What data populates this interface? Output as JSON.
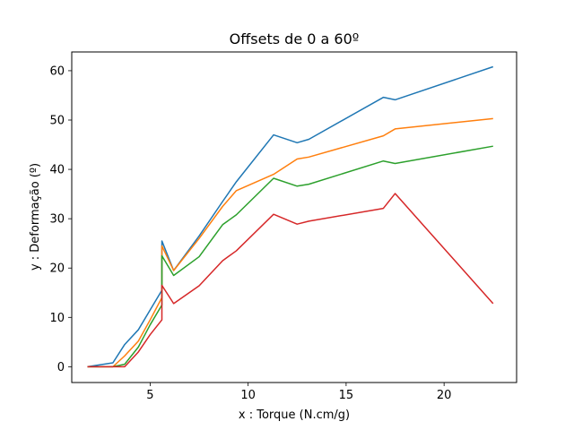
{
  "chart_data": {
    "type": "line",
    "title": "Offsets de 0 a 60º",
    "xlabel": "x : Torque (N.cm/g)",
    "ylabel": "y : Deformação (º)",
    "xlim": [
      1.0,
      23.7
    ],
    "ylim": [
      -3.2,
      63.8
    ],
    "xticks": [
      5,
      10,
      15,
      20
    ],
    "yticks": [
      0,
      10,
      20,
      30,
      40,
      50,
      60
    ],
    "grid": false,
    "legend": "none",
    "series": [
      {
        "color": "#1f77b4",
        "x": [
          1.8,
          3.1,
          3.7,
          4.4,
          5.0,
          5.6,
          5.6,
          6.2,
          7.5,
          8.7,
          9.4,
          11.3,
          12.5,
          13.1,
          16.9,
          17.5,
          22.5
        ],
        "y": [
          0,
          0.8,
          4.5,
          7.5,
          11.5,
          15.5,
          25.5,
          19.5,
          26.5,
          33.5,
          37.5,
          47.0,
          45.4,
          46.1,
          54.6,
          54.1,
          60.8
        ]
      },
      {
        "color": "#ff7f0e",
        "x": [
          1.8,
          3.1,
          3.7,
          4.4,
          5.0,
          5.6,
          5.6,
          6.2,
          7.5,
          8.7,
          9.4,
          11.3,
          12.5,
          13.1,
          16.9,
          17.5,
          22.5
        ],
        "y": [
          0,
          0,
          2.2,
          5.2,
          9.5,
          14.0,
          24.5,
          19.5,
          26.0,
          32.5,
          35.7,
          39.0,
          42.1,
          42.5,
          46.8,
          48.2,
          50.3
        ]
      },
      {
        "color": "#2ca02c",
        "x": [
          1.8,
          3.1,
          3.7,
          4.4,
          5.0,
          5.6,
          5.6,
          6.2,
          7.5,
          8.7,
          9.4,
          11.3,
          12.5,
          13.1,
          16.9,
          17.5,
          22.5
        ],
        "y": [
          0,
          0,
          0.5,
          4.0,
          8.5,
          12.5,
          22.5,
          18.5,
          22.3,
          28.8,
          30.8,
          38.2,
          36.6,
          37.0,
          41.7,
          41.2,
          44.7
        ]
      },
      {
        "color": "#d62728",
        "x": [
          1.8,
          3.1,
          3.7,
          4.4,
          5.0,
          5.6,
          5.6,
          6.2,
          7.5,
          8.7,
          9.4,
          11.3,
          12.5,
          13.1,
          16.9,
          17.5,
          22.5
        ],
        "y": [
          0,
          0,
          0,
          3.0,
          6.5,
          9.5,
          16.5,
          12.8,
          16.4,
          21.5,
          23.5,
          30.9,
          28.9,
          29.5,
          32.1,
          35.1,
          12.8
        ]
      }
    ]
  }
}
